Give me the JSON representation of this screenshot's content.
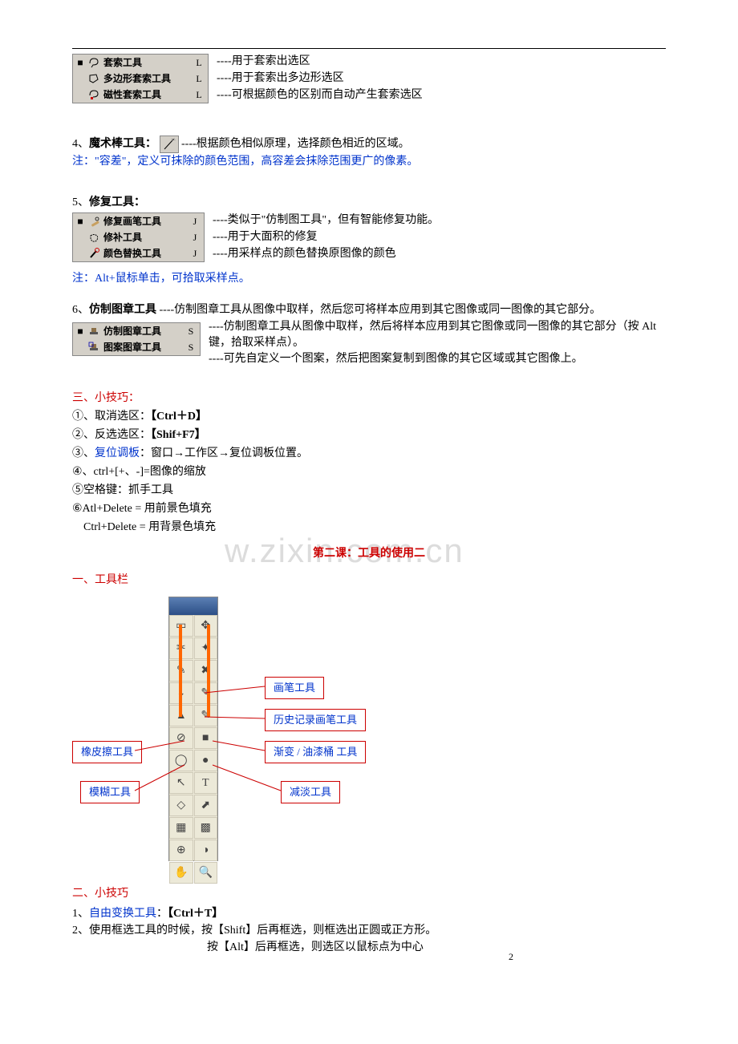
{
  "top_rule": true,
  "lasso_tools": {
    "rows": [
      {
        "bullet": "■",
        "icon": "lasso-icon",
        "label": "套索工具",
        "key": "L",
        "desc": "----用于套索出选区"
      },
      {
        "bullet": "",
        "icon": "poly-lasso-icon",
        "label": "多边形套索工具",
        "key": "L",
        "desc": "----用于套索出多边形选区"
      },
      {
        "bullet": "",
        "icon": "magnetic-lasso-icon",
        "label": "磁性套索工具",
        "key": "L",
        "desc": "----可根据颜色的区别而自动产生套索选区"
      }
    ]
  },
  "section4": {
    "prefix": "4、",
    "title": "魔术棒工具：",
    "desc": "----根据颜色相似原理，选择颜色相近的区域。",
    "note": "注：\"容差\"，定义可抹除的颜色范围，高容差会抹除范围更广的像素。"
  },
  "section5": {
    "prefix": "5、",
    "title": "修复工具：",
    "rows": [
      {
        "bullet": "■",
        "icon": "healing-brush-icon",
        "label": "修复画笔工具",
        "key": "J",
        "desc": "----类似于\"仿制图工具\"，但有智能修复功能。"
      },
      {
        "bullet": "",
        "icon": "patch-icon",
        "label": "修补工具",
        "key": "J",
        "desc": "----用于大面积的修复"
      },
      {
        "bullet": "",
        "icon": "color-replace-icon",
        "label": "颜色替换工具",
        "key": "J",
        "desc": "----用采样点的颜色替换原图像的颜色"
      }
    ],
    "note": "注：Alt+鼠标单击，可拾取采样点。"
  },
  "section6": {
    "prefix": "6、",
    "title": "仿制图章工具",
    "intro": " ----仿制图章工具从图像中取样，然后您可将样本应用到其它图像或同一图像的其它部分。",
    "rows": [
      {
        "bullet": "■",
        "icon": "clone-stamp-icon",
        "label": "仿制图章工具",
        "key": "S",
        "desc": "----仿制图章工具从图像中取样，然后将样本应用到其它图像或同一图像的其它部分（按 Alt 键，拾取采样点）。"
      },
      {
        "bullet": "",
        "icon": "pattern-stamp-icon",
        "label": "图案图章工具",
        "key": "S",
        "desc": "----可先自定义一个图案，然后把图案复制到图像的其它区域或其它图像上。"
      }
    ]
  },
  "tips_heading": "三、小技巧：",
  "tips": [
    {
      "pre": "①、取消选区：",
      "shortcut": "【Ctrl＋D】"
    },
    {
      "pre": "②、反选选区：",
      "shortcut": "【Shif+F7】"
    },
    {
      "pre": "③、",
      "blue": "复位调板",
      "rest": "：窗口→工作区→复位调板位置。"
    },
    {
      "pre": "④、ctrl+[+、-]=图像的缩放"
    },
    {
      "pre": "⑤空格键：抓手工具"
    },
    {
      "pre": "⑥Atl+Delete = 用前景色填充"
    },
    {
      "pre": "　Ctrl+Delete = 用背景色填充"
    }
  ],
  "lesson2_title": "第二课：工具的使用二",
  "toolbar_heading": "一、工具栏",
  "callouts": {
    "brush": "画笔工具",
    "history_brush": "历史记录画笔工具",
    "eraser": "橡皮擦工具",
    "gradient": "渐变 / 油漆桶 工具",
    "blur": "模糊工具",
    "dodge": "减淡工具"
  },
  "tool_glyphs": [
    "▭",
    "✥",
    "✂",
    "✦",
    "✎",
    "✖",
    "⌄",
    "✎",
    "▲",
    "✎",
    "⊘",
    "■",
    "◯",
    "●",
    "↖",
    "T",
    "◇",
    "⬈",
    "▦",
    "▩",
    "⊕",
    "◑",
    "✋",
    "🔍"
  ],
  "tips2_heading": "二、小技巧",
  "tips2": {
    "line1_pre": "1、",
    "line1_blue": "自由变换工具",
    "line1_colon": "：",
    "line1_shortcut": "【Ctrl＋T】",
    "line2": "2、使用框选工具的时候，按【Shift】后再框选，则框选出正圆或正方形。",
    "line3": "　　　　　　　　　　　　按【Alt】后再框选，则选区以鼠标点为中心"
  },
  "watermark": "w.zixin.com.cn",
  "page_number": "2",
  "colors": {
    "menu_bg": "#d4d0c8",
    "red": "#cc0000",
    "blue": "#0033cc",
    "orange": "#ff6600"
  }
}
